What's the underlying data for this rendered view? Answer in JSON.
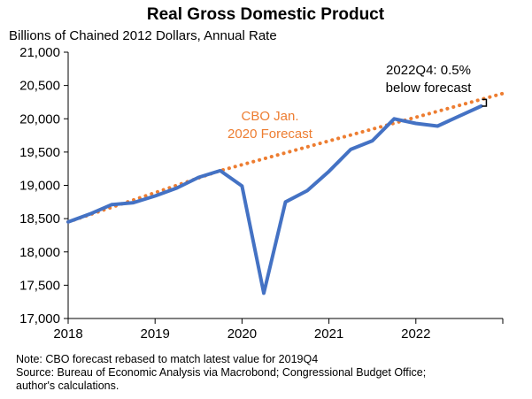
{
  "chart_data": {
    "type": "line",
    "title": "Real Gross Domestic Product",
    "subtitle": "Billions of Chained 2012 Dollars, Annual Rate",
    "xlim": [
      2018,
      2023
    ],
    "ylim": [
      17000,
      21000
    ],
    "x_ticks": [
      2018,
      2019,
      2020,
      2021,
      2022
    ],
    "y_ticks": [
      17000,
      17500,
      18000,
      18500,
      19000,
      19500,
      20000,
      20500,
      21000
    ],
    "y_tick_labels": [
      "17,000",
      "17,500",
      "18,000",
      "18,500",
      "19,000",
      "19,500",
      "20,000",
      "20,500",
      "21,000"
    ],
    "series": [
      {
        "style": "solid",
        "color": "#4472C4",
        "x": [
          "2018Q1",
          "2018Q2",
          "2018Q3",
          "2018Q4",
          "2019Q1",
          "2019Q2",
          "2019Q3",
          "2019Q4",
          "2020Q1",
          "2020Q2",
          "2020Q3",
          "2020Q4",
          "2021Q1",
          "2021Q2",
          "2021Q3",
          "2021Q4",
          "2022Q1",
          "2022Q2",
          "2022Q3",
          "2022Q4"
        ],
        "values": [
          18450,
          18570,
          18710,
          18740,
          18840,
          18960,
          19120,
          19220,
          18990,
          17380,
          18750,
          18920,
          19210,
          19540,
          19670,
          20000,
          19930,
          19890,
          20040,
          20190
        ]
      },
      {
        "style": "dotted",
        "color": "#ED7D31",
        "x": [
          "2018Q1",
          "2019Q4",
          "2023Q1"
        ],
        "values": [
          18450,
          19220,
          20380
        ]
      }
    ],
    "annotations": {
      "forecast_label_line1": "CBO Jan.",
      "forecast_label_line2": "2020 Forecast",
      "gap_label_line1": "2022Q4: 0.5%",
      "gap_label_line2": "below forecast"
    },
    "notes": {
      "line1": "Note: CBO forecast rebased to match latest value for 2019Q4",
      "line2": "Source: Bureau of Economic Analysis via Macrobond; Congressional Budget Office;",
      "line3": "author's calculations."
    },
    "grid": false,
    "legend": "none"
  }
}
